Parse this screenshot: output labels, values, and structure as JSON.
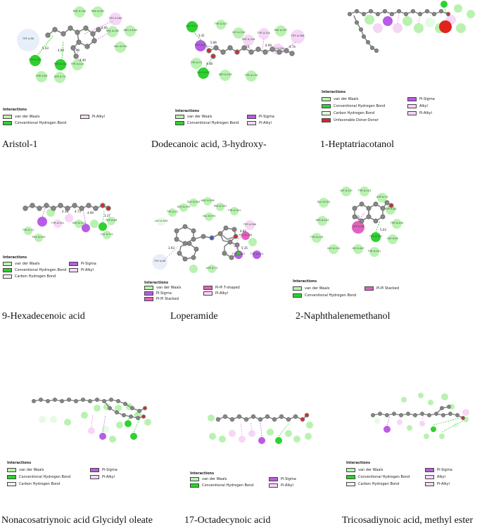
{
  "legend_title": "Interactions",
  "colors": {
    "van_der_waals": "#b9f2b0",
    "conventional_h_bond": "#2fd12f",
    "carbon_h_bond": "#e6fbe3",
    "pi_sigma": "#b85ce6",
    "pi_alkyl": "#f6d6f6",
    "alkyl": "#f6d6f6",
    "pi_pi_stacked": "#e460c0",
    "pi_pi_t_shaped": "#e460c0",
    "unfavorable_donor_donor": "#e0241c"
  },
  "panels": [
    {
      "caption": "Aristol-1",
      "legend": [
        "van der Waals",
        "Conventional Hydrogen Bond",
        "Pi-Alkyl"
      ],
      "residues": [
        "TRP A:86",
        "PHE A:330",
        "PHE A:397",
        "TRP A:280",
        "PHE A:290",
        "ARG A:296",
        "VAL A:294",
        "TYR A:337",
        "PHE A:342",
        "TYR A:124",
        "THR A:83",
        "ASP A:74"
      ],
      "distances": [
        "5.03",
        "4.00",
        "8.95",
        "5.99",
        "4.40"
      ]
    },
    {
      "caption": "Dodecanoic acid, 3-hydroxy-",
      "legend": [
        "van der Waals",
        "Conventional Hydrogen Bond",
        "Pi-Sigma",
        "Pi-Alkyl"
      ],
      "residues": [
        "TYR A:337",
        "GLY A:117",
        "GLY A:118",
        "TRP A:86",
        "TYR A:341",
        "PHE A:338",
        "PHE A:297",
        "TRP A:286",
        "TYR A:72",
        "GLY A:120",
        "GLU A:202",
        "TYR A:124",
        "SER A:203",
        "LEU A:289",
        "VAL A:294"
      ],
      "distances": [
        "3.41",
        "4.48",
        "5.86",
        "4.93",
        "4.99",
        "4.74"
      ]
    },
    {
      "caption": "1-Heptatriacotanol",
      "legend": [
        "van der Waals",
        "Conventional Hydrogen Bond",
        "Carbon Hydrogen Bond",
        "Unfavorable Donor-Donor",
        "Pi-Sigma",
        "Alkyl",
        "Pi-Alkyl"
      ],
      "residues": [],
      "distances": []
    },
    {
      "caption": "9-Hexadecenoic acid",
      "legend": [
        "van der Waals",
        "Conventional Hydrogen Bond",
        "Carbon Hydrogen Bond",
        "Pi-Sigma",
        "Pi-Alkyl"
      ],
      "residues": [
        "TYR A:72",
        "PHE A:295",
        "TYR A:341",
        "SER A:203",
        "GLY A:121",
        "TRP A:86"
      ],
      "distances": [
        "3.37",
        "4.38",
        "4.73",
        "4.99"
      ]
    },
    {
      "caption": "Loperamide",
      "legend": [
        "van der Waals",
        "Pi-Sigma",
        "Pi-Pi Stacked",
        "Pi-Pi T-shaped",
        "Pi-Alkyl"
      ],
      "residues": [
        "LEU A:289",
        "TYR A:72",
        "SER A:293",
        "GLU A:292",
        "ARG A:296",
        "VAL A:294",
        "PHE A:297",
        "TRP A:286",
        "TYR A:341",
        "PHE A:338",
        "TYR A:337",
        "ASP A:74",
        "TRP A:86",
        "TYR A:124"
      ],
      "distances": [
        "4.82",
        "5.35",
        "3.93"
      ]
    },
    {
      "caption": "2-Naphthalenemethanol",
      "legend": [
        "van der Waals",
        "Conventional Hydrogen Bond",
        "Pi-Pi Stacked"
      ],
      "residues": [
        "GLY A:121",
        "TYR A:124",
        "ASP A:74",
        "GLU A:202",
        "THR A:83",
        "TRP A:439",
        "SER A:203",
        "TYR A:133",
        "GLY A:120",
        "HIS A:447",
        "TYR A:341",
        "TYR A:337",
        "GLY A:82",
        "TRP A:86"
      ],
      "distances": [
        "5.03",
        "3.92"
      ]
    },
    {
      "caption": "Nonacosatriynoic acid Glycidyl oleate",
      "legend": [
        "van der Waals",
        "Conventional Hydrogen Bond",
        "Carbon Hydrogen Bond",
        "Pi-Sigma",
        "Pi-Alkyl"
      ],
      "residues": [],
      "distances": []
    },
    {
      "caption": "17-Octadecynoic acid",
      "legend": [
        "van der Waals",
        "Conventional Hydrogen Bond",
        "Pi-Sigma",
        "Pi-Alkyl"
      ],
      "residues": [],
      "distances": []
    },
    {
      "caption": "Tricosadiynoic acid, methyl ester",
      "legend": [
        "van der Waals",
        "Conventional Hydrogen Bond",
        "Carbon Hydrogen Bond",
        "Pi-Sigma",
        "Alkyl",
        "Pi-Alkyl"
      ],
      "residues": [],
      "distances": []
    }
  ]
}
